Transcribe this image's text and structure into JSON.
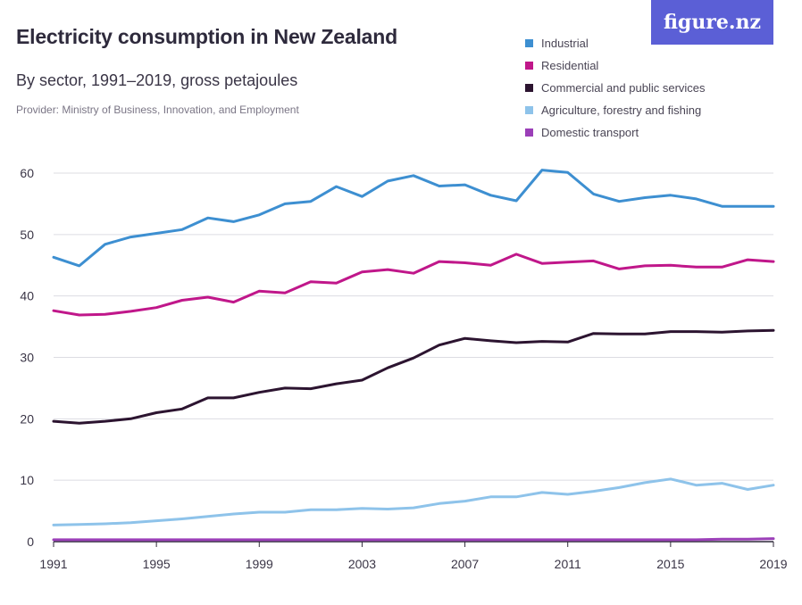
{
  "header": {
    "title": "Electricity consumption in New Zealand",
    "subtitle": "By sector, 1991–2019, gross petajoules",
    "provider": "Provider: Ministry of Business, Innovation, and Employment",
    "logo": "figure.nz"
  },
  "chart_data": {
    "type": "line",
    "title": "Electricity consumption in New Zealand",
    "subtitle": "By sector, 1991–2019, gross petajoules",
    "xlabel": "",
    "ylabel": "",
    "xlim": [
      1991,
      2019
    ],
    "ylim": [
      0,
      60
    ],
    "x_ticks": [
      1991,
      1995,
      1999,
      2003,
      2007,
      2011,
      2015,
      2019
    ],
    "y_ticks": [
      0,
      10,
      20,
      30,
      40,
      50,
      60
    ],
    "grid": "horizontal",
    "legend_position": "top-right",
    "x": [
      1991,
      1992,
      1993,
      1994,
      1995,
      1996,
      1997,
      1998,
      1999,
      2000,
      2001,
      2002,
      2003,
      2004,
      2005,
      2006,
      2007,
      2008,
      2009,
      2010,
      2011,
      2012,
      2013,
      2014,
      2015,
      2016,
      2017,
      2018,
      2019
    ],
    "series": [
      {
        "name": "Industrial",
        "color": "#3d8fd1",
        "values": [
          46.3,
          44.9,
          48.4,
          49.6,
          50.2,
          50.8,
          52.7,
          52.1,
          53.2,
          55.0,
          55.4,
          57.8,
          56.2,
          58.7,
          59.6,
          57.9,
          58.1,
          56.4,
          55.5,
          60.5,
          60.1,
          56.6,
          55.4,
          56.0,
          56.4,
          55.8,
          54.6,
          54.6,
          54.6
        ]
      },
      {
        "name": "Residential",
        "color": "#c0178a",
        "values": [
          37.6,
          36.9,
          37.0,
          37.5,
          38.1,
          39.3,
          39.8,
          39.0,
          40.8,
          40.5,
          42.3,
          42.1,
          43.9,
          44.3,
          43.7,
          45.6,
          45.4,
          45.0,
          46.8,
          45.3,
          45.5,
          45.7,
          44.4,
          44.9,
          45.0,
          44.7,
          44.7,
          45.9,
          45.6
        ]
      },
      {
        "name": "Commercial and public services",
        "color": "#2c1430",
        "values": [
          19.6,
          19.3,
          19.6,
          20.0,
          21.0,
          21.6,
          23.4,
          23.4,
          24.3,
          25.0,
          24.9,
          25.7,
          26.3,
          28.3,
          29.9,
          32.0,
          33.1,
          32.7,
          32.4,
          32.6,
          32.5,
          33.9,
          33.8,
          33.8,
          34.2,
          34.2,
          34.1,
          34.3,
          34.4
        ]
      },
      {
        "name": "Agriculture, forestry and fishing",
        "color": "#8ec3ea",
        "values": [
          2.7,
          2.8,
          2.9,
          3.1,
          3.4,
          3.7,
          4.1,
          4.5,
          4.8,
          4.8,
          5.2,
          5.2,
          5.4,
          5.3,
          5.5,
          6.2,
          6.6,
          7.3,
          7.3,
          8.0,
          7.7,
          8.2,
          8.8,
          9.6,
          10.2,
          9.2,
          9.5,
          8.5,
          9.2
        ]
      },
      {
        "name": "Domestic transport",
        "color": "#9b3fb8",
        "values": [
          0.3,
          0.3,
          0.3,
          0.3,
          0.3,
          0.3,
          0.3,
          0.3,
          0.3,
          0.3,
          0.3,
          0.3,
          0.3,
          0.3,
          0.3,
          0.3,
          0.3,
          0.3,
          0.3,
          0.3,
          0.3,
          0.3,
          0.3,
          0.3,
          0.3,
          0.3,
          0.4,
          0.4,
          0.5
        ]
      }
    ]
  }
}
